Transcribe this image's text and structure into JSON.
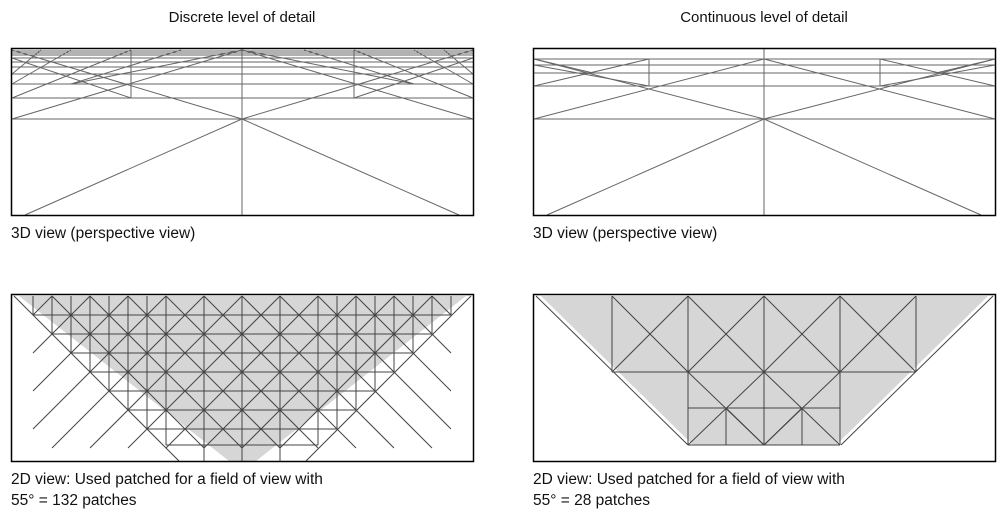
{
  "left": {
    "title": "Discrete level of detail",
    "caption_3d": "3D view (perspective view)",
    "caption_2d_line1": "2D view: Used patched for a field of view with",
    "caption_2d_line2": "55° = 132 patches"
  },
  "right": {
    "title": "Continuous level of detail",
    "caption_3d": "3D view (perspective view)",
    "caption_2d_line1": "2D view: Used patched for a field of view with",
    "caption_2d_line2": "55° = 28 patches"
  },
  "colors": {
    "frame": "#000000",
    "line": "#555555",
    "fov_fill": "#d6d6d6"
  }
}
